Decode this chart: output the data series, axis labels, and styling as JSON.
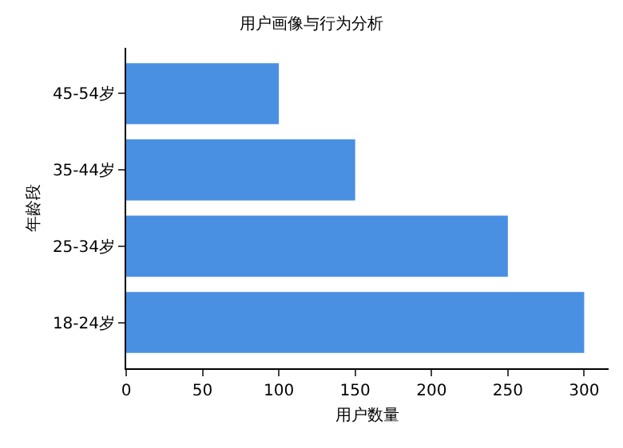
{
  "chart_data": {
    "type": "bar",
    "orientation": "horizontal",
    "title": "用户画像与行为分析",
    "xlabel": "用户数量",
    "ylabel": "年龄段",
    "categories": [
      "45-54岁",
      "35-44岁",
      "25-34岁",
      "18-24岁"
    ],
    "values": [
      100,
      150,
      250,
      300
    ],
    "color": "#4a90e2",
    "xlim": [
      0,
      316
    ],
    "xticks": [
      0,
      50,
      100,
      150,
      200,
      250,
      300
    ]
  }
}
